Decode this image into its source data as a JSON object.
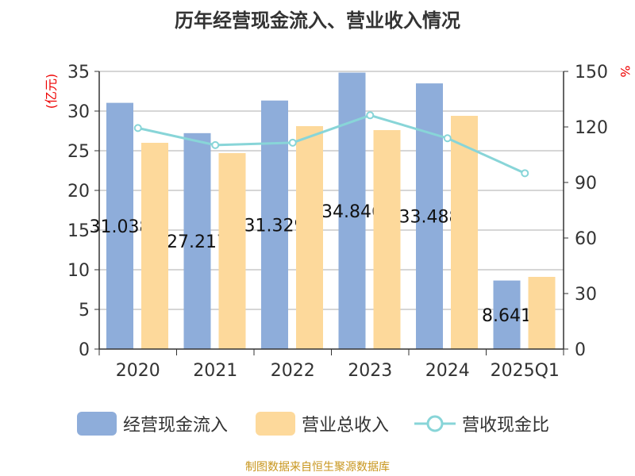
{
  "title": "历年经营现金流入、营业收入情况",
  "source": "制图数据来自恒生聚源数据库",
  "chart_data": {
    "type": "bar",
    "categories": [
      "2020",
      "2021",
      "2022",
      "2023",
      "2024",
      "2025Q1"
    ],
    "left_axis": {
      "label": "(亿元)",
      "ylim": [
        0,
        35
      ],
      "ticks": [
        0,
        5,
        10,
        15,
        20,
        25,
        30,
        35
      ]
    },
    "right_axis": {
      "label": "%",
      "ylim": [
        0,
        150
      ],
      "ticks": [
        0,
        30,
        60,
        90,
        120,
        150
      ]
    },
    "series": [
      {
        "name": "经营现金流入",
        "type": "bar",
        "axis": "left",
        "color": "#8eadda",
        "values": [
          31.038,
          27.217,
          31.329,
          34.846,
          33.488,
          8.641
        ],
        "labels": [
          "31.038",
          "27.217",
          "31.329",
          "34.846",
          "33.488",
          "8.641"
        ]
      },
      {
        "name": "营业总收入",
        "type": "bar",
        "axis": "left",
        "color": "#fdd99b",
        "values": [
          26.0,
          24.7,
          28.1,
          27.6,
          29.4,
          9.1
        ]
      },
      {
        "name": "营收现金比",
        "type": "line",
        "axis": "right",
        "color": "#88d5d8",
        "values": [
          119.4,
          110.2,
          111.5,
          126.3,
          113.9,
          95.0
        ]
      }
    ],
    "grid": true,
    "legend_position": "bottom"
  }
}
